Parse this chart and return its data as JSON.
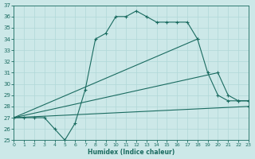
{
  "xlabel": "Humidex (Indice chaleur)",
  "xlim": [
    0,
    23
  ],
  "ylim": [
    25,
    37
  ],
  "bg_color": "#cce8e8",
  "line_color": "#1a6b60",
  "grid_color": "#b0d8d8",
  "xticks": [
    0,
    1,
    2,
    3,
    4,
    5,
    6,
    7,
    8,
    9,
    10,
    11,
    12,
    13,
    14,
    15,
    16,
    17,
    18,
    19,
    20,
    21,
    22,
    23
  ],
  "yticks": [
    25,
    26,
    27,
    28,
    29,
    30,
    31,
    32,
    33,
    34,
    35,
    36,
    37
  ],
  "curves": [
    {
      "x": [
        0,
        1,
        2,
        3,
        4,
        5,
        6,
        7,
        8,
        9,
        10,
        11,
        12,
        13,
        14,
        15,
        16,
        17,
        18
      ],
      "y": [
        27,
        27,
        27,
        27,
        26,
        25,
        26.5,
        29.5,
        34.0,
        34.5,
        36.0,
        36.0,
        36.5,
        36.0,
        35.5,
        35.5,
        35.5,
        35.5,
        34.0
      ]
    },
    {
      "x": [
        0,
        18,
        19,
        20,
        21,
        22,
        23
      ],
      "y": [
        27,
        34,
        31,
        29,
        28.5,
        28.5,
        28.5
      ]
    },
    {
      "x": [
        0,
        20,
        21,
        22,
        23
      ],
      "y": [
        27,
        31,
        29,
        28.5,
        28.5
      ]
    },
    {
      "x": [
        0,
        23
      ],
      "y": [
        27,
        28
      ]
    }
  ]
}
